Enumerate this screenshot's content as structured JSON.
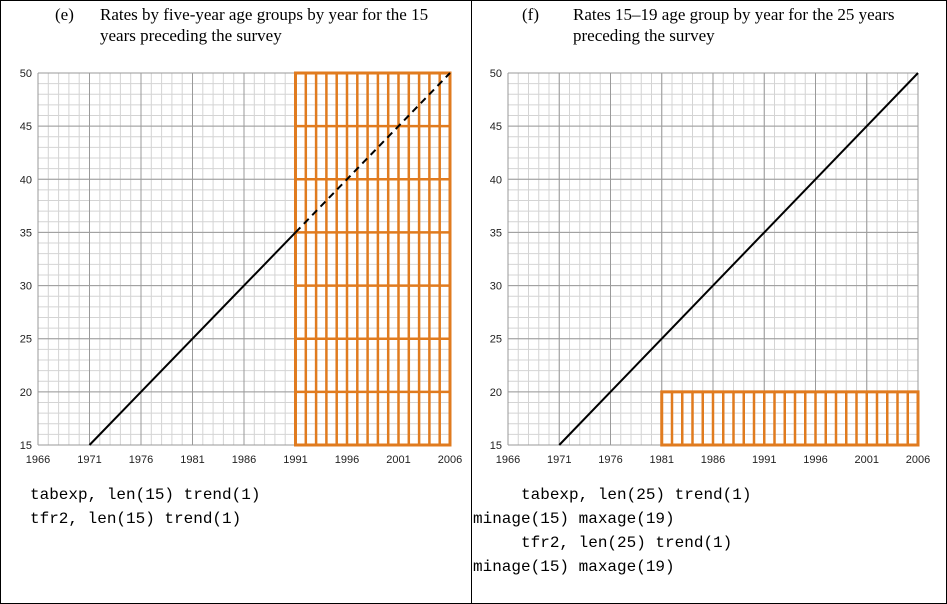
{
  "chart_data": [
    {
      "type": "line",
      "label": "(e)",
      "title": "Rates by five-year age groups by year for the 15 years preceding the survey",
      "x": [
        1971,
        1991,
        2006
      ],
      "series": [
        {
          "color": "#000000",
          "values": [
            15,
            35,
            null
          ]
        },
        {
          "color": "#000000",
          "dashed": true,
          "values": [
            null,
            35,
            50
          ]
        }
      ],
      "region": {
        "x": [
          1991,
          2006
        ],
        "y": [
          15,
          50
        ],
        "color": "#e07b1f"
      },
      "xlim": [
        1966,
        2006
      ],
      "xticks": [
        1966,
        1971,
        1976,
        1981,
        1986,
        1991,
        1996,
        2001,
        2006
      ],
      "ylim": [
        15,
        50
      ],
      "yticks": [
        15,
        20,
        25,
        30,
        35,
        40,
        45,
        50
      ],
      "grid": true,
      "code": [
        "tabexp, len(15) trend(1)",
        "tfr2, len(15) trend(1)"
      ]
    },
    {
      "type": "line",
      "label": "(f)",
      "title": "Rates 15–19 age group by year for the 25 years preceding the survey",
      "x": [
        1971,
        2006
      ],
      "series": [
        {
          "color": "#000000",
          "values": [
            15,
            50
          ]
        }
      ],
      "region": {
        "x": [
          1981,
          2006
        ],
        "y": [
          15,
          20
        ],
        "color": "#e07b1f"
      },
      "xlim": [
        1966,
        2006
      ],
      "xticks": [
        1966,
        1971,
        1976,
        1981,
        1986,
        1991,
        1996,
        2001,
        2006
      ],
      "ylim": [
        15,
        50
      ],
      "yticks": [
        15,
        20,
        25,
        30,
        35,
        40,
        45,
        50
      ],
      "grid": true,
      "code": [
        "     tabexp, len(25) trend(1)",
        "minage(15) maxage(19)",
        "     tfr2, len(25) trend(1)",
        "minage(15) maxage(19)"
      ]
    }
  ]
}
